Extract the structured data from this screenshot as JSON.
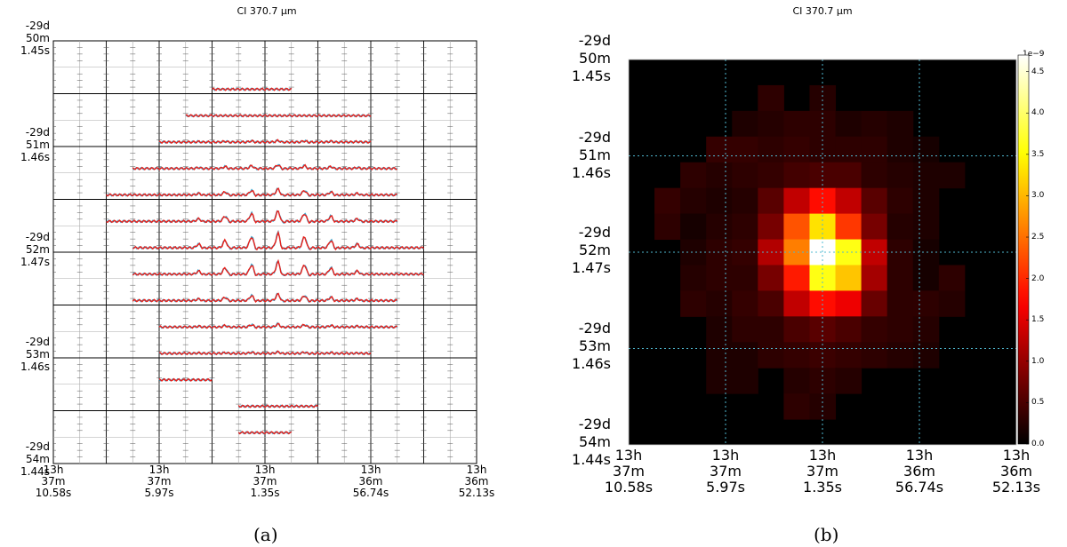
{
  "chart_data": [
    {
      "type": "line",
      "panel_caption": "(a)",
      "title": "CI 370.7 μm",
      "yticks": [
        [
          "-29d",
          "50m",
          "1.45s"
        ],
        [
          "-29d",
          "51m",
          "1.46s"
        ],
        [
          "-29d",
          "52m",
          "1.47s"
        ],
        [
          "-29d",
          "53m",
          "1.46s"
        ],
        [
          "-29d",
          "54m",
          "1.44s"
        ]
      ],
      "xticks": [
        [
          "13h",
          "37m",
          "10.58s"
        ],
        [
          "13h",
          "37m",
          "5.97s"
        ],
        [
          "13h",
          "37m",
          "1.35s"
        ],
        [
          "13h",
          "36m",
          "56.74s"
        ],
        [
          "13h",
          "36m",
          "52.13s"
        ]
      ],
      "grid_rows": 16,
      "grid_cols": 16,
      "row_column_spans": [
        [
          6,
          8
        ],
        [
          5,
          11
        ],
        [
          4,
          11
        ],
        [
          3,
          12
        ],
        [
          2,
          12
        ],
        [
          2,
          12
        ],
        [
          3,
          13
        ],
        [
          3,
          13
        ],
        [
          3,
          12
        ],
        [
          4,
          12
        ],
        [
          4,
          11
        ],
        [
          4,
          5
        ],
        [
          7,
          9
        ],
        [
          7,
          8
        ]
      ],
      "row_peak_amplitudes": [
        0,
        0,
        0.1,
        0.25,
        0.4,
        0.7,
        1.0,
        0.85,
        0.45,
        0.2,
        0.1,
        0,
        0,
        0
      ],
      "series_colors": {
        "fit": "#e8201a",
        "observed": "#3aa7cf"
      }
    },
    {
      "type": "heatmap",
      "panel_caption": "(b)",
      "title": "CI 370.7 μm",
      "yticks": [
        [
          "-29d",
          "50m",
          "1.45s"
        ],
        [
          "-29d",
          "51m",
          "1.46s"
        ],
        [
          "-29d",
          "52m",
          "1.47s"
        ],
        [
          "-29d",
          "53m",
          "1.46s"
        ],
        [
          "-29d",
          "54m",
          "1.44s"
        ]
      ],
      "xticks": [
        [
          "13h",
          "37m",
          "10.58s"
        ],
        [
          "13h",
          "37m",
          "5.97s"
        ],
        [
          "13h",
          "37m",
          "1.35s"
        ],
        [
          "13h",
          "36m",
          "56.74s"
        ],
        [
          "13h",
          "36m",
          "52.13s"
        ]
      ],
      "colorbar": {
        "exponent_label": "1e−9",
        "ticks": [
          "0.0",
          "0.5",
          "1.0",
          "1.5",
          "2.0",
          "2.5",
          "3.0",
          "3.5",
          "4.0",
          "4.5"
        ],
        "range": [
          0,
          4.7
        ]
      },
      "gridline_color": "#4fb8d0",
      "z": [
        [
          0,
          0,
          0,
          0,
          0,
          0,
          0,
          0,
          0,
          0,
          0,
          0,
          0,
          0,
          0
        ],
        [
          0,
          0,
          0,
          0,
          0,
          0.3,
          0,
          0.25,
          0,
          0,
          0,
          0,
          0,
          0,
          0
        ],
        [
          0,
          0,
          0,
          0,
          0.2,
          0.25,
          0.3,
          0.3,
          0.2,
          0.25,
          0.2,
          0,
          0,
          0,
          0
        ],
        [
          0,
          0,
          0,
          0.35,
          0.35,
          0.3,
          0.35,
          0.3,
          0.3,
          0.3,
          0.2,
          0.15,
          0,
          0,
          0
        ],
        [
          0,
          0,
          0.3,
          0.25,
          0.3,
          0.35,
          0.45,
          0.5,
          0.5,
          0.3,
          0.25,
          0.2,
          0.2,
          0,
          0
        ],
        [
          0,
          0.35,
          0.25,
          0.2,
          0.25,
          0.6,
          1.3,
          1.8,
          1.3,
          0.6,
          0.3,
          0.2,
          0,
          0,
          0
        ],
        [
          0,
          0.3,
          0.15,
          0.25,
          0.3,
          0.8,
          2.3,
          3.3,
          2.1,
          0.8,
          0.25,
          0.2,
          0,
          0,
          0
        ],
        [
          0,
          0,
          0.2,
          0.3,
          0.35,
          1.2,
          2.6,
          4.7,
          3.6,
          1.3,
          0.3,
          0.15,
          0,
          0,
          0
        ],
        [
          0,
          0,
          0.25,
          0.3,
          0.3,
          0.8,
          1.9,
          3.6,
          3.1,
          1.1,
          0.3,
          0.15,
          0.3,
          0,
          0
        ],
        [
          0,
          0,
          0.3,
          0.25,
          0.35,
          0.5,
          1.3,
          1.8,
          1.6,
          0.7,
          0.3,
          0.3,
          0.25,
          0,
          0
        ],
        [
          0,
          0,
          0,
          0.2,
          0.3,
          0.3,
          0.5,
          0.6,
          0.5,
          0.35,
          0.3,
          0.25,
          0,
          0,
          0
        ],
        [
          0,
          0,
          0,
          0.2,
          0.2,
          0.3,
          0.35,
          0.4,
          0.35,
          0.3,
          0.25,
          0.2,
          0,
          0,
          0
        ],
        [
          0,
          0,
          0,
          0.2,
          0.2,
          0,
          0.25,
          0.3,
          0.25,
          0,
          0,
          0,
          0,
          0,
          0
        ],
        [
          0,
          0,
          0,
          0,
          0,
          0,
          0.3,
          0.25,
          0,
          0,
          0,
          0,
          0,
          0,
          0
        ],
        [
          0,
          0,
          0,
          0,
          0,
          0,
          0,
          0,
          0,
          0,
          0,
          0,
          0,
          0,
          0
        ]
      ]
    }
  ]
}
